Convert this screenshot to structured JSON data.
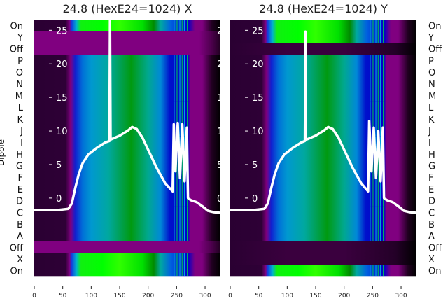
{
  "chart_data": [
    {
      "type": "heatmap",
      "title": "24.8 (HexE24=1024) X",
      "ylabel": "Dipole",
      "row_labels": [
        "On",
        "Y",
        "Off",
        "P",
        "O",
        "N",
        "M",
        "L",
        "K",
        "J",
        "I",
        "H",
        "G",
        "F",
        "E",
        "D",
        "C",
        "B",
        "A",
        "Off",
        "X",
        "On"
      ],
      "row_states": [
        "bright",
        "purple",
        "purple",
        "normal",
        "normal",
        "normal",
        "normal",
        "normal",
        "normal",
        "normal",
        "normal",
        "normal",
        "normal",
        "normal",
        "normal",
        "normal",
        "normal",
        "normal",
        "normal",
        "purple",
        "bright",
        "bright"
      ],
      "row_label_side": "left",
      "xlim": [
        0,
        327
      ],
      "xticks": [
        0,
        50,
        100,
        150,
        200,
        250,
        300
      ],
      "xtick_labels": [
        "0",
        "50",
        "100",
        "150",
        "200",
        "250",
        "300"
      ],
      "overlay": {
        "type": "line",
        "ylim": [
          -11.7,
          26.6
        ],
        "yticks": [
          0,
          5,
          10,
          15,
          20,
          25
        ],
        "ytick_labels": [
          "0",
          "5",
          "10",
          "15",
          "20",
          "25"
        ],
        "x": [
          0,
          20,
          40,
          60,
          66,
          72,
          78,
          85,
          95,
          110,
          125,
          132,
          133,
          134,
          136,
          150,
          165,
          172,
          180,
          190,
          200,
          215,
          230,
          243,
          245,
          248,
          252,
          256,
          260,
          264,
          268,
          270,
          275,
          285,
          295,
          305,
          315,
          327
        ],
        "y": [
          -1.8,
          -1.8,
          -1.8,
          -1.6,
          -0.8,
          1.5,
          3.5,
          5.2,
          6.5,
          7.5,
          8.3,
          8.5,
          26.6,
          8.7,
          8.8,
          9.3,
          10.1,
          10.6,
          10.3,
          9.0,
          7.2,
          4.5,
          2.2,
          1.0,
          11.0,
          4.0,
          11.2,
          3.0,
          11.0,
          2.5,
          10.5,
          0.0,
          -0.3,
          -0.6,
          -1.2,
          -1.9,
          -2.1,
          -2.2
        ]
      }
    },
    {
      "type": "heatmap",
      "title": "24.8 (HexE24=1024) Y",
      "row_labels": [
        "On",
        "Y",
        "Off",
        "P",
        "O",
        "N",
        "M",
        "L",
        "K",
        "J",
        "I",
        "H",
        "G",
        "F",
        "E",
        "D",
        "C",
        "B",
        "A",
        "Off",
        "X",
        "On"
      ],
      "row_states": [
        "bright",
        "bright",
        "dark",
        "normal",
        "normal",
        "normal",
        "normal",
        "normal",
        "normal",
        "normal",
        "normal",
        "normal",
        "normal",
        "normal",
        "normal",
        "normal",
        "normal",
        "normal",
        "normal",
        "dark",
        "dark",
        "bright"
      ],
      "row_label_side": "right",
      "xlim": [
        0,
        327
      ],
      "xticks": [
        0,
        50,
        100,
        150,
        200,
        250,
        300
      ],
      "xtick_labels": [
        "0",
        "50",
        "100",
        "150",
        "200",
        "250",
        "300"
      ],
      "overlay": {
        "type": "line",
        "ylim": [
          -11.7,
          26.6
        ],
        "yticks": [
          0,
          5,
          10,
          15,
          20,
          25
        ],
        "ytick_labels": [
          "0",
          "5",
          "10",
          "15",
          "20",
          "25"
        ],
        "x": [
          0,
          20,
          40,
          60,
          66,
          72,
          78,
          85,
          95,
          110,
          125,
          131,
          132,
          133,
          136,
          150,
          165,
          172,
          180,
          190,
          200,
          215,
          230,
          242,
          244,
          248,
          252,
          256,
          260,
          264,
          268,
          270,
          275,
          285,
          295,
          305,
          315,
          327
        ],
        "y": [
          -1.8,
          -1.8,
          -1.8,
          -1.6,
          -0.8,
          1.5,
          3.5,
          5.2,
          6.5,
          7.5,
          8.3,
          8.5,
          24.8,
          8.7,
          8.8,
          9.3,
          10.1,
          10.6,
          10.3,
          9.0,
          7.2,
          4.5,
          2.2,
          1.0,
          11.5,
          4.0,
          10.5,
          3.0,
          10.0,
          2.5,
          10.5,
          0.0,
          -0.3,
          -0.6,
          -1.2,
          -1.9,
          -2.1,
          -2.2
        ]
      }
    }
  ]
}
